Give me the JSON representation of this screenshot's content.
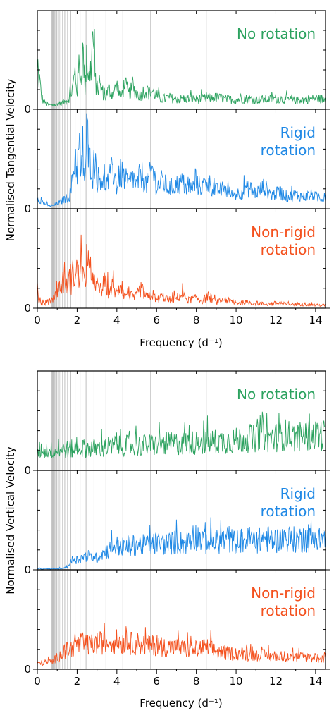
{
  "chart_data": [
    {
      "type": "line",
      "xlabel": "Frequency (d⁻¹)",
      "ylabel": "Normalised Tangential Velocity",
      "xlim": [
        0,
        14.5
      ],
      "x_ticks": [
        "0",
        "2",
        "4",
        "6",
        "8",
        "10",
        "12",
        "14"
      ],
      "y_tick_label": "0",
      "mode_frequencies": [
        0.72,
        0.76,
        0.8,
        0.84,
        0.88,
        0.93,
        0.98,
        1.04,
        1.1,
        1.18,
        1.27,
        1.38,
        1.52,
        1.68,
        1.9,
        2.15,
        2.45,
        2.85,
        3.45,
        4.3,
        5.7,
        8.5
      ],
      "series": [
        {
          "name": "No rotation",
          "color": "#2ca25f",
          "values": [
            [
              0.0,
              0.34
            ],
            [
              0.1,
              0.32
            ],
            [
              0.2,
              0.14
            ],
            [
              0.3,
              0.08
            ],
            [
              0.5,
              0.05
            ],
            [
              0.8,
              0.04
            ],
            [
              1.0,
              0.05
            ],
            [
              1.2,
              0.06
            ],
            [
              1.4,
              0.08
            ],
            [
              1.55,
              0.1
            ],
            [
              1.7,
              0.16
            ],
            [
              1.8,
              0.24
            ],
            [
              1.9,
              0.38
            ],
            [
              2.0,
              0.18
            ],
            [
              2.1,
              0.46
            ],
            [
              2.2,
              0.3
            ],
            [
              2.3,
              0.58
            ],
            [
              2.4,
              0.22
            ],
            [
              2.5,
              0.5
            ],
            [
              2.6,
              0.3
            ],
            [
              2.7,
              0.42
            ],
            [
              2.8,
              0.78
            ],
            [
              2.9,
              0.3
            ],
            [
              3.0,
              0.2
            ],
            [
              3.2,
              0.22
            ],
            [
              3.4,
              0.12
            ],
            [
              3.6,
              0.2
            ],
            [
              3.8,
              0.15
            ],
            [
              4.0,
              0.24
            ],
            [
              4.2,
              0.12
            ],
            [
              4.4,
              0.26
            ],
            [
              4.6,
              0.15
            ],
            [
              4.8,
              0.22
            ],
            [
              5.0,
              0.16
            ],
            [
              5.2,
              0.14
            ],
            [
              5.4,
              0.2
            ],
            [
              5.6,
              0.16
            ],
            [
              5.8,
              0.18
            ],
            [
              6.2,
              0.1
            ],
            [
              6.6,
              0.12
            ],
            [
              7.0,
              0.1
            ],
            [
              7.5,
              0.11
            ],
            [
              8.0,
              0.1
            ],
            [
              8.5,
              0.11
            ],
            [
              9.0,
              0.12
            ],
            [
              9.5,
              0.1
            ],
            [
              10.0,
              0.1
            ],
            [
              10.5,
              0.11
            ],
            [
              11.0,
              0.1
            ],
            [
              11.5,
              0.1
            ],
            [
              12.0,
              0.11
            ],
            [
              12.5,
              0.1
            ],
            [
              13.0,
              0.09
            ],
            [
              13.5,
              0.1
            ],
            [
              14.0,
              0.11
            ],
            [
              14.5,
              0.1
            ]
          ]
        },
        {
          "name": "Rigid rotation",
          "color": "#1e88e5",
          "values": [
            [
              0.0,
              0.12
            ],
            [
              0.2,
              0.08
            ],
            [
              0.4,
              0.05
            ],
            [
              0.6,
              0.03
            ],
            [
              0.8,
              0.03
            ],
            [
              1.0,
              0.05
            ],
            [
              1.2,
              0.07
            ],
            [
              1.4,
              0.1
            ],
            [
              1.6,
              0.12
            ],
            [
              1.7,
              0.2
            ],
            [
              1.8,
              0.34
            ],
            [
              1.9,
              0.56
            ],
            [
              2.0,
              0.38
            ],
            [
              2.1,
              0.62
            ],
            [
              2.2,
              0.34
            ],
            [
              2.3,
              0.5
            ],
            [
              2.4,
              0.28
            ],
            [
              2.5,
              0.82
            ],
            [
              2.6,
              0.45
            ],
            [
              2.7,
              0.52
            ],
            [
              2.8,
              0.32
            ],
            [
              2.9,
              0.58
            ],
            [
              3.0,
              0.28
            ],
            [
              3.2,
              0.34
            ],
            [
              3.4,
              0.24
            ],
            [
              3.6,
              0.28
            ],
            [
              3.8,
              0.4
            ],
            [
              4.0,
              0.22
            ],
            [
              4.2,
              0.36
            ],
            [
              4.4,
              0.3
            ],
            [
              4.6,
              0.24
            ],
            [
              4.8,
              0.32
            ],
            [
              5.0,
              0.22
            ],
            [
              5.2,
              0.36
            ],
            [
              5.5,
              0.24
            ],
            [
              5.8,
              0.4
            ],
            [
              6.0,
              0.22
            ],
            [
              6.3,
              0.28
            ],
            [
              6.6,
              0.2
            ],
            [
              7.0,
              0.24
            ],
            [
              7.3,
              0.26
            ],
            [
              7.6,
              0.18
            ],
            [
              8.0,
              0.24
            ],
            [
              8.3,
              0.22
            ],
            [
              8.6,
              0.26
            ],
            [
              9.0,
              0.18
            ],
            [
              9.4,
              0.2
            ],
            [
              9.8,
              0.14
            ],
            [
              10.2,
              0.16
            ],
            [
              10.6,
              0.2
            ],
            [
              11.0,
              0.16
            ],
            [
              11.4,
              0.22
            ],
            [
              11.8,
              0.14
            ],
            [
              12.2,
              0.16
            ],
            [
              12.6,
              0.12
            ],
            [
              13.0,
              0.14
            ],
            [
              13.4,
              0.12
            ],
            [
              13.8,
              0.14
            ],
            [
              14.2,
              0.1
            ],
            [
              14.5,
              0.12
            ]
          ]
        },
        {
          "name": "Non-rigid rotation",
          "color": "#f4511e",
          "values": [
            [
              0.0,
              0.24
            ],
            [
              0.05,
              0.1
            ],
            [
              0.15,
              0.06
            ],
            [
              0.3,
              0.05
            ],
            [
              0.5,
              0.06
            ],
            [
              0.7,
              0.08
            ],
            [
              0.9,
              0.12
            ],
            [
              1.0,
              0.18
            ],
            [
              1.2,
              0.22
            ],
            [
              1.4,
              0.26
            ],
            [
              1.5,
              0.2
            ],
            [
              1.6,
              0.3
            ],
            [
              1.7,
              0.24
            ],
            [
              1.8,
              0.36
            ],
            [
              1.9,
              0.28
            ],
            [
              2.0,
              0.42
            ],
            [
              2.1,
              0.26
            ],
            [
              2.2,
              0.55
            ],
            [
              2.3,
              0.34
            ],
            [
              2.4,
              0.2
            ],
            [
              2.5,
              0.62
            ],
            [
              2.6,
              0.38
            ],
            [
              2.7,
              0.24
            ],
            [
              2.8,
              0.42
            ],
            [
              2.9,
              0.18
            ],
            [
              3.0,
              0.22
            ],
            [
              3.2,
              0.18
            ],
            [
              3.4,
              0.26
            ],
            [
              3.6,
              0.16
            ],
            [
              3.8,
              0.22
            ],
            [
              4.0,
              0.14
            ],
            [
              4.2,
              0.24
            ],
            [
              4.4,
              0.12
            ],
            [
              4.6,
              0.16
            ],
            [
              4.8,
              0.1
            ],
            [
              5.0,
              0.12
            ],
            [
              5.2,
              0.2
            ],
            [
              5.5,
              0.1
            ],
            [
              5.8,
              0.14
            ],
            [
              6.0,
              0.08
            ],
            [
              6.3,
              0.12
            ],
            [
              6.6,
              0.08
            ],
            [
              7.0,
              0.1
            ],
            [
              7.3,
              0.14
            ],
            [
              7.6,
              0.08
            ],
            [
              8.0,
              0.1
            ],
            [
              8.3,
              0.08
            ],
            [
              8.6,
              0.12
            ],
            [
              9.0,
              0.06
            ],
            [
              9.5,
              0.08
            ],
            [
              10.0,
              0.05
            ],
            [
              10.5,
              0.06
            ],
            [
              11.0,
              0.05
            ],
            [
              11.5,
              0.04
            ],
            [
              12.0,
              0.05
            ],
            [
              12.5,
              0.04
            ],
            [
              13.0,
              0.04
            ],
            [
              13.5,
              0.04
            ],
            [
              14.0,
              0.03
            ],
            [
              14.5,
              0.03
            ]
          ]
        }
      ]
    },
    {
      "type": "line",
      "xlabel": "Frequency (d⁻¹)",
      "ylabel": "Normalised Vertical Velocity",
      "xlim": [
        0,
        14.5
      ],
      "x_ticks": [
        "0",
        "2",
        "4",
        "6",
        "8",
        "10",
        "12",
        "14"
      ],
      "y_tick_label": "0",
      "mode_frequencies": [
        0.72,
        0.76,
        0.8,
        0.84,
        0.88,
        0.93,
        0.98,
        1.04,
        1.1,
        1.18,
        1.27,
        1.38,
        1.52,
        1.68,
        1.9,
        2.15,
        2.45,
        2.85,
        3.45,
        4.3,
        5.7,
        8.5
      ],
      "series": [
        {
          "name": "No rotation",
          "color": "#2ca25f",
          "values": [
            [
              0.0,
              0.2
            ],
            [
              1.0,
              0.2
            ],
            [
              2.0,
              0.22
            ],
            [
              3.0,
              0.22
            ],
            [
              4.0,
              0.24
            ],
            [
              5.0,
              0.25
            ],
            [
              6.0,
              0.26
            ],
            [
              7.0,
              0.27
            ],
            [
              8.0,
              0.28
            ],
            [
              9.0,
              0.29
            ],
            [
              10.0,
              0.3
            ],
            [
              11.0,
              0.32
            ],
            [
              11.3,
              0.42
            ],
            [
              11.5,
              0.32
            ],
            [
              12.0,
              0.33
            ],
            [
              12.5,
              0.36
            ],
            [
              13.0,
              0.33
            ],
            [
              13.5,
              0.35
            ],
            [
              14.0,
              0.35
            ],
            [
              14.5,
              0.36
            ]
          ]
        },
        {
          "name": "Rigid rotation",
          "color": "#1e88e5",
          "values": [
            [
              0.0,
              0.01
            ],
            [
              1.0,
              0.01
            ],
            [
              1.4,
              0.02
            ],
            [
              1.6,
              0.05
            ],
            [
              1.8,
              0.12
            ],
            [
              2.0,
              0.1
            ],
            [
              2.5,
              0.14
            ],
            [
              3.0,
              0.12
            ],
            [
              3.5,
              0.2
            ],
            [
              4.0,
              0.24
            ],
            [
              4.5,
              0.22
            ],
            [
              5.0,
              0.26
            ],
            [
              5.5,
              0.24
            ],
            [
              6.0,
              0.27
            ],
            [
              6.5,
              0.26
            ],
            [
              7.0,
              0.28
            ],
            [
              7.5,
              0.27
            ],
            [
              8.0,
              0.34
            ],
            [
              8.5,
              0.27
            ],
            [
              9.0,
              0.28
            ],
            [
              9.5,
              0.3
            ],
            [
              10.0,
              0.28
            ],
            [
              10.5,
              0.3
            ],
            [
              11.0,
              0.29
            ],
            [
              11.5,
              0.31
            ],
            [
              12.0,
              0.29
            ],
            [
              12.5,
              0.32
            ],
            [
              13.0,
              0.3
            ],
            [
              13.5,
              0.31
            ],
            [
              14.0,
              0.3
            ],
            [
              14.5,
              0.32
            ]
          ]
        },
        {
          "name": "Non-rigid rotation",
          "color": "#f4511e",
          "values": [
            [
              0.0,
              0.06
            ],
            [
              0.5,
              0.07
            ],
            [
              0.8,
              0.08
            ],
            [
              1.0,
              0.12
            ],
            [
              1.4,
              0.18
            ],
            [
              1.8,
              0.22
            ],
            [
              2.2,
              0.26
            ],
            [
              2.6,
              0.24
            ],
            [
              3.0,
              0.26
            ],
            [
              3.5,
              0.27
            ],
            [
              4.0,
              0.28
            ],
            [
              4.5,
              0.26
            ],
            [
              5.0,
              0.26
            ],
            [
              5.5,
              0.24
            ],
            [
              6.0,
              0.24
            ],
            [
              6.5,
              0.22
            ],
            [
              7.0,
              0.22
            ],
            [
              7.5,
              0.2
            ],
            [
              8.0,
              0.2
            ],
            [
              8.5,
              0.22
            ],
            [
              9.0,
              0.18
            ],
            [
              9.5,
              0.16
            ],
            [
              10.0,
              0.16
            ],
            [
              10.5,
              0.15
            ],
            [
              11.0,
              0.14
            ],
            [
              11.5,
              0.14
            ],
            [
              12.0,
              0.13
            ],
            [
              12.5,
              0.13
            ],
            [
              13.0,
              0.12
            ],
            [
              13.5,
              0.12
            ],
            [
              14.0,
              0.11
            ],
            [
              14.5,
              0.11
            ]
          ]
        }
      ]
    }
  ]
}
